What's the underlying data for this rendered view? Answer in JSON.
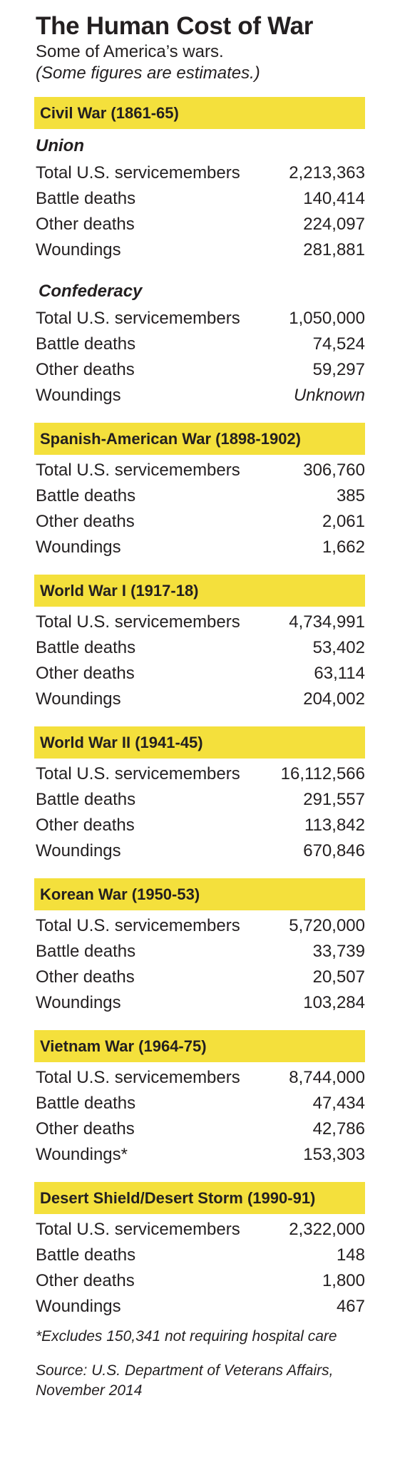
{
  "header": {
    "title": "The Human Cost of War",
    "subtitle": "Some of America’s wars.",
    "note": "(Some figures are estimates.)"
  },
  "colors": {
    "band": "#f4e03c",
    "text": "#231f20"
  },
  "wars": [
    {
      "name": "Civil War (1861-65)",
      "sides": [
        {
          "label": "Union",
          "rows": [
            {
              "label": "Total U.S. servicemembers",
              "value": "2,213,363"
            },
            {
              "label": "Battle deaths",
              "value": "140,414"
            },
            {
              "label": "Other deaths",
              "value": "224,097"
            },
            {
              "label": "Woundings",
              "value": "281,881"
            }
          ]
        },
        {
          "label": "Confederacy",
          "rows": [
            {
              "label": "Total U.S. servicemembers",
              "value": "1,050,000"
            },
            {
              "label": "Battle deaths",
              "value": "74,524"
            },
            {
              "label": "Other deaths",
              "value": "59,297"
            },
            {
              "label": "Woundings",
              "value": "Unknown"
            }
          ]
        }
      ]
    },
    {
      "name": "Spanish-American War (1898-1902)",
      "rows": [
        {
          "label": "Total U.S. servicemembers",
          "value": "306,760"
        },
        {
          "label": "Battle deaths",
          "value": "385"
        },
        {
          "label": "Other deaths",
          "value": "2,061"
        },
        {
          "label": "Woundings",
          "value": "1,662"
        }
      ]
    },
    {
      "name": "World War I (1917-18)",
      "rows": [
        {
          "label": "Total U.S. servicemembers",
          "value": "4,734,991"
        },
        {
          "label": "Battle deaths",
          "value": "53,402"
        },
        {
          "label": "Other deaths",
          "value": "63,114"
        },
        {
          "label": "Woundings",
          "value": "204,002"
        }
      ]
    },
    {
      "name": "World War II (1941-45)",
      "rows": [
        {
          "label": "Total U.S. servicemembers",
          "value": "16,112,566"
        },
        {
          "label": "Battle deaths",
          "value": "291,557"
        },
        {
          "label": "Other deaths",
          "value": "113,842"
        },
        {
          "label": "Woundings",
          "value": "670,846"
        }
      ]
    },
    {
      "name": "Korean War (1950-53)",
      "rows": [
        {
          "label": "Total U.S. servicemembers",
          "value": "5,720,000"
        },
        {
          "label": "Battle deaths",
          "value": "33,739"
        },
        {
          "label": "Other deaths",
          "value": "20,507"
        },
        {
          "label": "Woundings",
          "value": "103,284"
        }
      ]
    },
    {
      "name": "Vietnam War (1964-75)",
      "rows": [
        {
          "label": "Total U.S. servicemembers",
          "value": "8,744,000"
        },
        {
          "label": "Battle deaths",
          "value": "47,434"
        },
        {
          "label": "Other deaths",
          "value": "42,786"
        },
        {
          "label": "Woundings*",
          "value": "153,303"
        }
      ]
    },
    {
      "name": "Desert Shield/Desert Storm (1990-91)",
      "rows": [
        {
          "label": "Total U.S. servicemembers",
          "value": "2,322,000"
        },
        {
          "label": "Battle deaths",
          "value": "148"
        },
        {
          "label": "Other deaths",
          "value": "1,800"
        },
        {
          "label": "Woundings",
          "value": "467"
        }
      ]
    }
  ],
  "footnote": "*Excludes 150,341 not requiring hospital care",
  "source": "Source: U.S. Department of Veterans Affairs, November 2014"
}
